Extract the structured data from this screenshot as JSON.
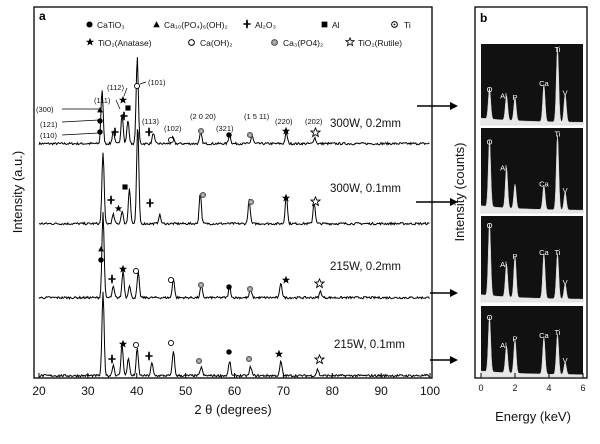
{
  "chart_data": [
    {
      "panel": "a",
      "type": "line",
      "xlabel": "2 θ (degrees)",
      "ylabel": "Intensity (a.u.)",
      "xlim": [
        20,
        100
      ],
      "x_ticks": [
        "20",
        "30",
        "40",
        "50",
        "60",
        "70",
        "80",
        "90",
        "100"
      ],
      "legend": [
        {
          "marker": "filled-circle",
          "label": "CaTiO₃"
        },
        {
          "marker": "filled-triangle",
          "label": "Ca₁₀(PO₄)₆(OH)₂"
        },
        {
          "marker": "plus",
          "label": "Al₂O₃"
        },
        {
          "marker": "filled-square",
          "label": "Al"
        },
        {
          "marker": "open-circle-dot",
          "label": "Ti"
        },
        {
          "marker": "filled-star",
          "label": "TiO₂(Anatase)"
        },
        {
          "marker": "open-circle",
          "label": "Ca(OH)₂"
        },
        {
          "marker": "grey-circle",
          "label": "Ca₃(PO4)₂"
        },
        {
          "marker": "open-star",
          "label": "TiO₂(Rutile)"
        }
      ],
      "hkl_labels": [
        "(110)",
        "(121)",
        "(300)",
        "(111)",
        "(112)",
        "(101)",
        "(113)",
        "(102)",
        "(2 0 20)",
        "(321)",
        "(1 5 11)",
        "(220)",
        "(202)"
      ],
      "series": [
        {
          "name": "300W, 0.2mm",
          "peaks": [
            {
              "x": 32.9,
              "h": 0.6
            },
            {
              "x": 35.2,
              "h": 0.14
            },
            {
              "x": 37.0,
              "h": 0.34
            },
            {
              "x": 38.2,
              "h": 0.26
            },
            {
              "x": 40.1,
              "h": 0.96
            },
            {
              "x": 43.4,
              "h": 0.12
            },
            {
              "x": 47.4,
              "h": 0.07
            },
            {
              "x": 53.1,
              "h": 0.12
            },
            {
              "x": 59.0,
              "h": 0.1
            },
            {
              "x": 63.6,
              "h": 0.09
            },
            {
              "x": 70.6,
              "h": 0.12
            },
            {
              "x": 76.4,
              "h": 0.07
            }
          ]
        },
        {
          "name": "300W, 0.1mm",
          "peaks": [
            {
              "x": 33.1,
              "h": 0.8
            },
            {
              "x": 35.2,
              "h": 0.1
            },
            {
              "x": 37.0,
              "h": 0.14
            },
            {
              "x": 38.5,
              "h": 0.4
            },
            {
              "x": 40.2,
              "h": 1.1
            },
            {
              "x": 44.7,
              "h": 0.1
            },
            {
              "x": 53.0,
              "h": 0.35
            },
            {
              "x": 63.0,
              "h": 0.27
            },
            {
              "x": 70.6,
              "h": 0.33
            },
            {
              "x": 76.3,
              "h": 0.25
            }
          ]
        },
        {
          "name": "215W, 0.2mm",
          "peaks": [
            {
              "x": 33.1,
              "h": 0.95
            },
            {
              "x": 35.2,
              "h": 0.12
            },
            {
              "x": 37.2,
              "h": 0.3
            },
            {
              "x": 38.5,
              "h": 0.14
            },
            {
              "x": 40.3,
              "h": 0.28
            },
            {
              "x": 47.5,
              "h": 0.22
            },
            {
              "x": 53.2,
              "h": 0.14
            },
            {
              "x": 59.0,
              "h": 0.12
            },
            {
              "x": 63.3,
              "h": 0.1
            },
            {
              "x": 69.5,
              "h": 0.17
            },
            {
              "x": 77.6,
              "h": 0.07
            }
          ]
        },
        {
          "name": "215W, 0.1mm",
          "peaks": [
            {
              "x": 33.1,
              "h": 0.92
            },
            {
              "x": 35.2,
              "h": 0.12
            },
            {
              "x": 37.0,
              "h": 0.35
            },
            {
              "x": 38.3,
              "h": 0.2
            },
            {
              "x": 40.1,
              "h": 0.3
            },
            {
              "x": 43.1,
              "h": 0.14
            },
            {
              "x": 47.5,
              "h": 0.28
            },
            {
              "x": 53.2,
              "h": 0.1
            },
            {
              "x": 59.0,
              "h": 0.16
            },
            {
              "x": 63.3,
              "h": 0.1
            },
            {
              "x": 69.5,
              "h": 0.16
            },
            {
              "x": 77.0,
              "h": 0.07
            }
          ]
        }
      ]
    },
    {
      "panel": "b",
      "type": "area",
      "xlabel": "Energy (keV)",
      "ylabel": "Intensity (counts)",
      "xlim": [
        0,
        6
      ],
      "x_ticks": [
        "0",
        "2",
        "4",
        "6"
      ],
      "spectra": [
        {
          "peaks": [
            {
              "x": 0.5,
              "h": 0.4,
              "label": "O"
            },
            {
              "x": 1.5,
              "h": 0.32,
              "label": "Al"
            },
            {
              "x": 2.0,
              "h": 0.3,
              "label": "P"
            },
            {
              "x": 3.7,
              "h": 0.48,
              "label": "Ca"
            },
            {
              "x": 4.5,
              "h": 0.96,
              "label": "Ti"
            },
            {
              "x": 4.95,
              "h": 0.36,
              "label": "V"
            }
          ]
        },
        {
          "peaks": [
            {
              "x": 0.5,
              "h": 0.82,
              "label": "O"
            },
            {
              "x": 1.5,
              "h": 0.5,
              "label": "Al"
            },
            {
              "x": 2.0,
              "h": 0.3
            },
            {
              "x": 3.7,
              "h": 0.3,
              "label": "Ca"
            },
            {
              "x": 4.5,
              "h": 0.92,
              "label": "Ti"
            },
            {
              "x": 4.95,
              "h": 0.22,
              "label": "V"
            }
          ]
        },
        {
          "peaks": [
            {
              "x": 0.5,
              "h": 0.88,
              "label": "O"
            },
            {
              "x": 1.5,
              "h": 0.4,
              "label": "Al"
            },
            {
              "x": 2.0,
              "h": 0.5,
              "label": "P"
            },
            {
              "x": 3.7,
              "h": 0.55,
              "label": "Ca"
            },
            {
              "x": 4.5,
              "h": 0.55,
              "label": "Ti"
            },
            {
              "x": 4.95,
              "h": 0.18,
              "label": "V"
            }
          ]
        },
        {
          "peaks": [
            {
              "x": 0.5,
              "h": 0.82,
              "label": "O"
            },
            {
              "x": 1.5,
              "h": 0.4,
              "label": "Al"
            },
            {
              "x": 2.0,
              "h": 0.5,
              "label": "P"
            },
            {
              "x": 3.7,
              "h": 0.55,
              "label": "Ca"
            },
            {
              "x": 4.5,
              "h": 0.6,
              "label": "Ti"
            },
            {
              "x": 4.95,
              "h": 0.18,
              "label": "V"
            }
          ]
        }
      ]
    }
  ]
}
